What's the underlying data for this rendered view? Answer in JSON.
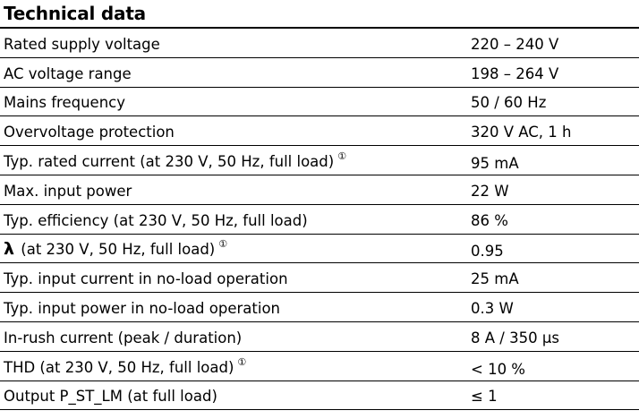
{
  "title": "Technical data",
  "rows": [
    {
      "label": "Rated supply voltage",
      "value": "220 – 240 V"
    },
    {
      "label": "AC voltage range",
      "value": "198 – 264 V"
    },
    {
      "label": "Mains frequency",
      "value": "50 / 60 Hz"
    },
    {
      "label": "Overvoltage protection",
      "value": "320 V AC, 1 h"
    },
    {
      "label": "Typ. rated current (at 230 V, 50 Hz, full load)",
      "note": "①",
      "value": "95 mA"
    },
    {
      "label": "Max. input power",
      "value": "22 W"
    },
    {
      "label": "Typ. efficiency (at 230 V, 50 Hz, full load)",
      "value": "86 %"
    },
    {
      "label_symbol": "λ",
      "label": "(at 230 V, 50 Hz, full load)",
      "note": "①",
      "value": "0.95"
    },
    {
      "label": "Typ. input current in no-load operation",
      "value": "25 mA"
    },
    {
      "label": "Typ. input power in no-load operation",
      "value": "0.3 W"
    },
    {
      "label": "In-rush current (peak / duration)",
      "value": "8 A / 350 µs"
    },
    {
      "label": "THD (at 230 V, 50 Hz, full load)",
      "note": "①",
      "value": "< 10 %"
    },
    {
      "label": "Output P_ST_LM (at full load)",
      "value": "≤ 1"
    }
  ]
}
